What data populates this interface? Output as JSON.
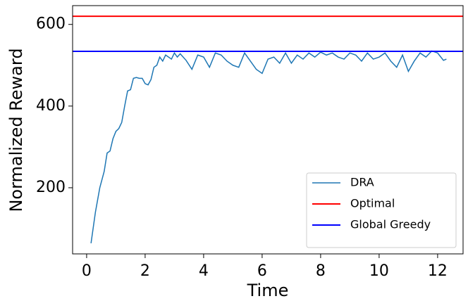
{
  "chart_data": {
    "type": "line",
    "x_label": "Time",
    "y_label": "Normalized Reward",
    "x": [
      0.15,
      0.3,
      0.45,
      0.6,
      0.7,
      0.8,
      0.9,
      1.0,
      1.1,
      1.2,
      1.3,
      1.4,
      1.5,
      1.6,
      1.7,
      1.8,
      1.9,
      2.0,
      2.1,
      2.2,
      2.3,
      2.4,
      2.5,
      2.6,
      2.7,
      2.8,
      2.9,
      3.0,
      3.1,
      3.2,
      3.4,
      3.6,
      3.8,
      4.0,
      4.2,
      4.4,
      4.6,
      4.8,
      5.0,
      5.2,
      5.4,
      5.6,
      5.8,
      6.0,
      6.2,
      6.4,
      6.6,
      6.8,
      7.0,
      7.2,
      7.4,
      7.6,
      7.8,
      8.0,
      8.2,
      8.4,
      8.6,
      8.8,
      9.0,
      9.2,
      9.4,
      9.6,
      9.8,
      10.0,
      10.2,
      10.4,
      10.6,
      10.8,
      11.0,
      11.2,
      11.4,
      11.6,
      11.8,
      12.0,
      12.2,
      12.3
    ],
    "series": [
      {
        "name": "DRA",
        "color": "#1f77b4",
        "values": [
          64,
          140,
          200,
          240,
          285,
          290,
          320,
          338,
          345,
          360,
          400,
          437,
          440,
          468,
          470,
          468,
          468,
          455,
          452,
          465,
          495,
          500,
          520,
          510,
          525,
          520,
          515,
          530,
          520,
          528,
          512,
          490,
          525,
          520,
          495,
          530,
          525,
          510,
          500,
          495,
          530,
          510,
          490,
          480,
          515,
          520,
          505,
          530,
          505,
          525,
          515,
          530,
          520,
          532,
          525,
          530,
          520,
          515,
          530,
          525,
          510,
          530,
          515,
          520,
          530,
          510,
          495,
          525,
          485,
          510,
          530,
          520,
          535,
          530,
          512,
          515
        ]
      }
    ],
    "hlines": [
      {
        "name": "Optimal",
        "color": "#ff0000",
        "value": 620
      },
      {
        "name": "Global Greedy",
        "color": "#0000ff",
        "value": 534
      }
    ],
    "xlim": [
      -0.48,
      12.87
    ],
    "ylim": [
      38,
      646
    ],
    "xticks": [
      0,
      2,
      4,
      6,
      8,
      10,
      12
    ],
    "yticks": [
      200,
      400,
      600
    ],
    "grid": false,
    "legend": "lower right"
  }
}
